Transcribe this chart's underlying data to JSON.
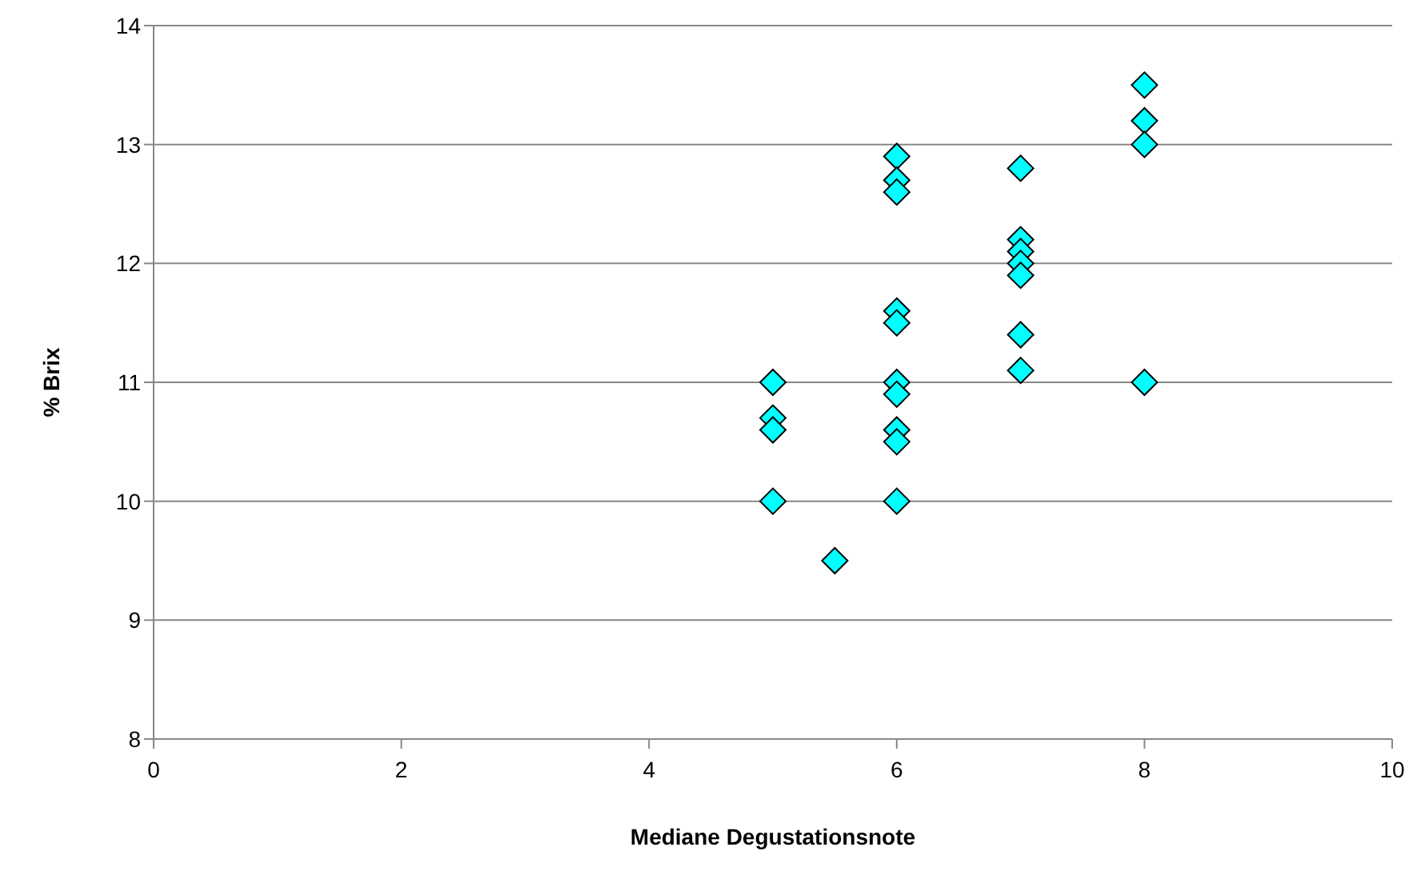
{
  "chart_data": {
    "type": "scatter",
    "xlabel": "Mediane Degustationsnote",
    "ylabel": "% Brix",
    "x": [
      5,
      5,
      5,
      5,
      5.5,
      6,
      6,
      6,
      6,
      6,
      6,
      6,
      6,
      6,
      6,
      7,
      7,
      7,
      7,
      7,
      7,
      7,
      8,
      8,
      8,
      8
    ],
    "values": [
      11.0,
      10.7,
      10.6,
      10.0,
      9.5,
      12.9,
      12.7,
      12.6,
      11.6,
      11.5,
      11.0,
      10.9,
      10.6,
      10.5,
      10.0,
      12.8,
      12.2,
      12.1,
      12.0,
      11.9,
      11.4,
      11.1,
      13.5,
      13.2,
      13.0,
      11.0
    ],
    "color": "#00ffff",
    "marker": "diamond",
    "xlim": [
      0,
      10
    ],
    "xticks": [
      0,
      2,
      4,
      6,
      8,
      10
    ],
    "ylim": [
      8,
      14
    ],
    "yticks": [
      8,
      9,
      10,
      11,
      12,
      13,
      14
    ],
    "grid": "y"
  }
}
